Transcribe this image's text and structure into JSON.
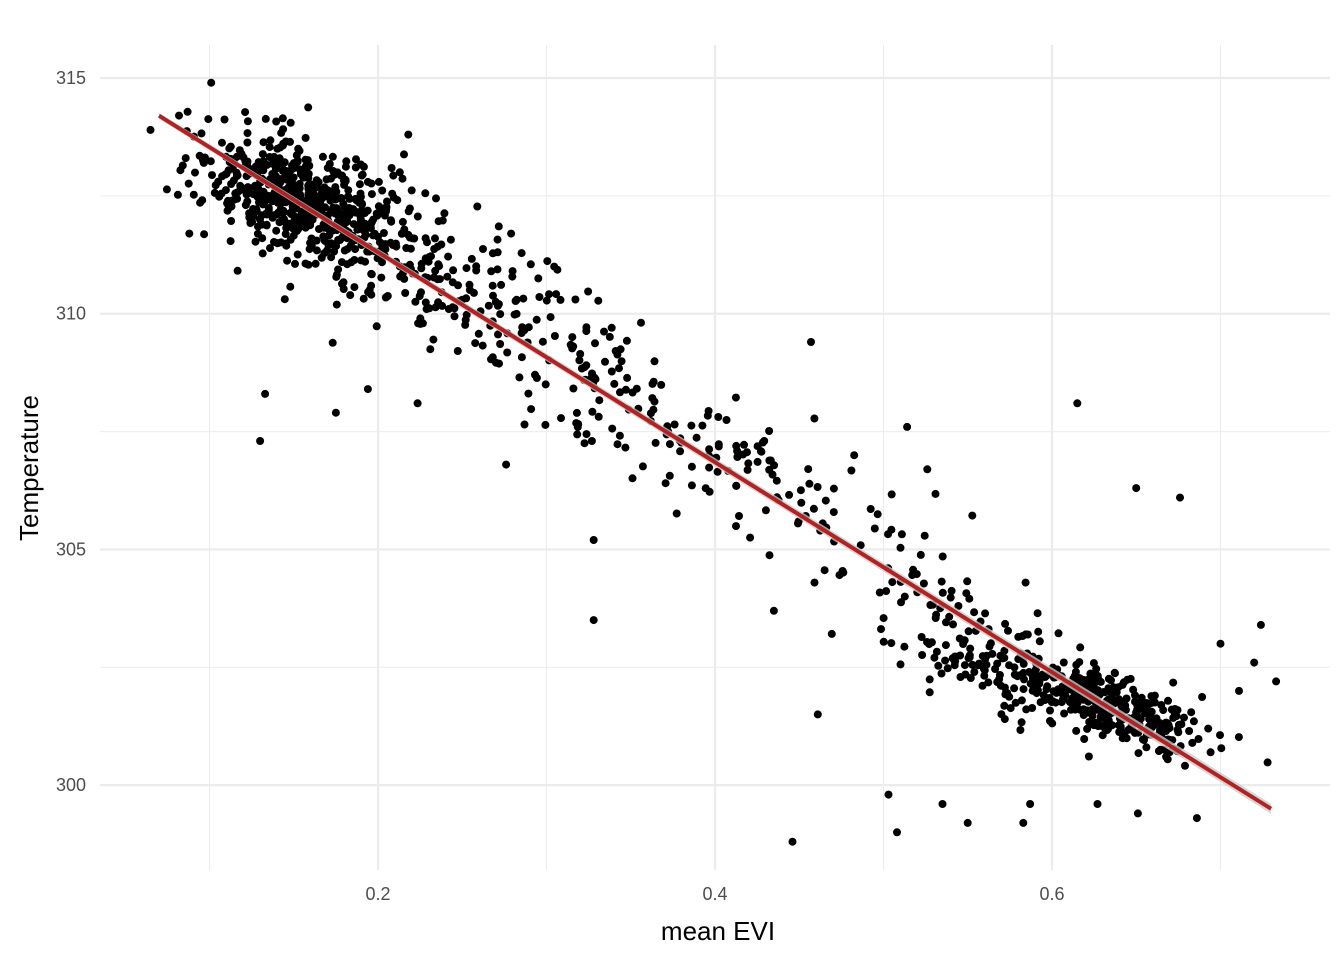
{
  "chart_data": {
    "type": "scatter",
    "title": "",
    "xlabel": "mean EVI",
    "ylabel": "Temperature",
    "xlim": [
      0.035,
      0.765
    ],
    "ylim": [
      298.2,
      315.7
    ],
    "x_ticks": [
      0.2,
      0.4,
      0.6
    ],
    "x_tick_labels": [
      "0.2",
      "0.4",
      "0.6"
    ],
    "x_minor_ticks": [
      0.1,
      0.3,
      0.5,
      0.7
    ],
    "y_ticks": [
      300,
      305,
      310,
      315
    ],
    "y_tick_labels": [
      "300",
      "305",
      "310",
      "315"
    ],
    "y_minor_ticks": [
      302.5,
      307.5,
      312.5
    ],
    "grid": true,
    "legend": "none",
    "colors": {
      "points": "#000000",
      "fit_line": "#b22222",
      "confidence_band": "#cccccc",
      "grid": "#ebebeb"
    },
    "fit_line": {
      "type": "linear",
      "x": [
        0.07,
        0.73
      ],
      "y": [
        314.2,
        299.5
      ]
    },
    "clusters": [
      {
        "x_mean": 0.155,
        "x_sd": 0.03,
        "y_mean": 312.6,
        "y_sd": 0.9,
        "n": 560
      },
      {
        "x_mean": 0.24,
        "x_sd": 0.045,
        "y_mean": 311.0,
        "y_sd": 1.1,
        "n": 180
      },
      {
        "x_mean": 0.33,
        "x_sd": 0.05,
        "y_mean": 309.0,
        "y_sd": 1.0,
        "n": 90
      },
      {
        "x_mean": 0.42,
        "x_sd": 0.045,
        "y_mean": 307.0,
        "y_sd": 1.0,
        "n": 80
      },
      {
        "x_mean": 0.52,
        "x_sd": 0.04,
        "y_mean": 304.2,
        "y_sd": 1.1,
        "n": 70
      },
      {
        "x_mean": 0.63,
        "x_sd": 0.03,
        "y_mean": 301.8,
        "y_sd": 0.55,
        "n": 330
      },
      {
        "x_mean": 0.56,
        "x_sd": 0.025,
        "y_mean": 301.3,
        "y_sd": 0.6,
        "n": 80
      }
    ],
    "outliers": [
      [
        0.065,
        313.9
      ],
      [
        0.088,
        311.7
      ],
      [
        0.101,
        314.9
      ],
      [
        0.13,
        307.3
      ],
      [
        0.133,
        308.3
      ],
      [
        0.175,
        307.9
      ],
      [
        0.194,
        308.4
      ],
      [
        0.218,
        313.8
      ],
      [
        0.276,
        306.8
      ],
      [
        0.279,
        311.7
      ],
      [
        0.328,
        305.2
      ],
      [
        0.328,
        303.5
      ],
      [
        0.457,
        309.4
      ],
      [
        0.461,
        301.5
      ],
      [
        0.446,
        298.8
      ],
      [
        0.508,
        299.0
      ],
      [
        0.503,
        299.8
      ],
      [
        0.514,
        307.6
      ],
      [
        0.526,
        306.7
      ],
      [
        0.535,
        299.6
      ],
      [
        0.55,
        299.2
      ],
      [
        0.583,
        299.2
      ],
      [
        0.587,
        299.6
      ],
      [
        0.615,
        308.1
      ],
      [
        0.627,
        299.6
      ],
      [
        0.65,
        306.3
      ],
      [
        0.651,
        299.4
      ],
      [
        0.676,
        306.1
      ],
      [
        0.686,
        299.3
      ],
      [
        0.7,
        303.0
      ],
      [
        0.711,
        302.0
      ],
      [
        0.72,
        302.6
      ],
      [
        0.724,
        303.4
      ],
      [
        0.733,
        302.2
      ]
    ]
  }
}
